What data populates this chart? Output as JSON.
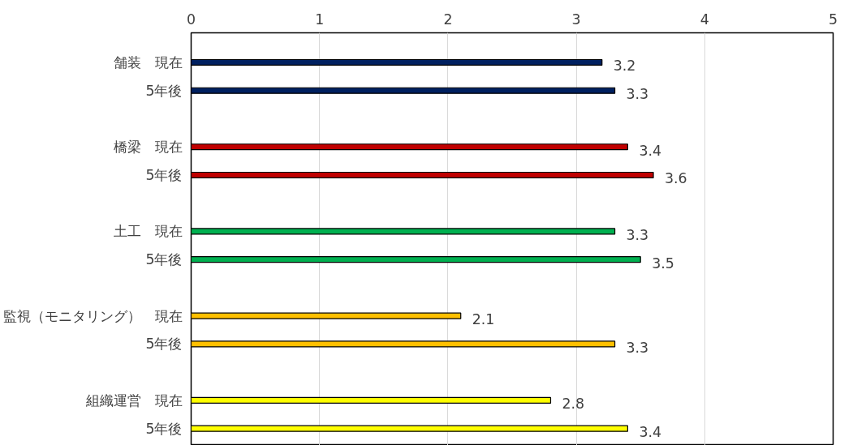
{
  "chart_data": {
    "type": "bar",
    "orientation": "horizontal",
    "categories": [
      "舗装　現在",
      "5年後",
      null,
      "橋梁　現在",
      "5年後",
      null,
      "土工　現在",
      "5年後",
      null,
      "監視（モニタリング）　現在",
      "5年後",
      null,
      "組織運営　現在",
      "5年後"
    ],
    "values": [
      3.2,
      3.3,
      null,
      3.4,
      3.6,
      null,
      3.3,
      3.5,
      null,
      2.1,
      3.3,
      null,
      2.8,
      3.4
    ],
    "colors": [
      "#002060",
      "#002060",
      null,
      "#c00000",
      "#c00000",
      null,
      "#00b050",
      "#00b050",
      null,
      "#ffc000",
      "#ffc000",
      null,
      "#ffff00",
      "#ffff00"
    ],
    "xlim": [
      0,
      5
    ],
    "xticks": [
      0,
      1,
      2,
      3,
      4,
      5
    ],
    "grid": "x",
    "data_labels": true
  }
}
